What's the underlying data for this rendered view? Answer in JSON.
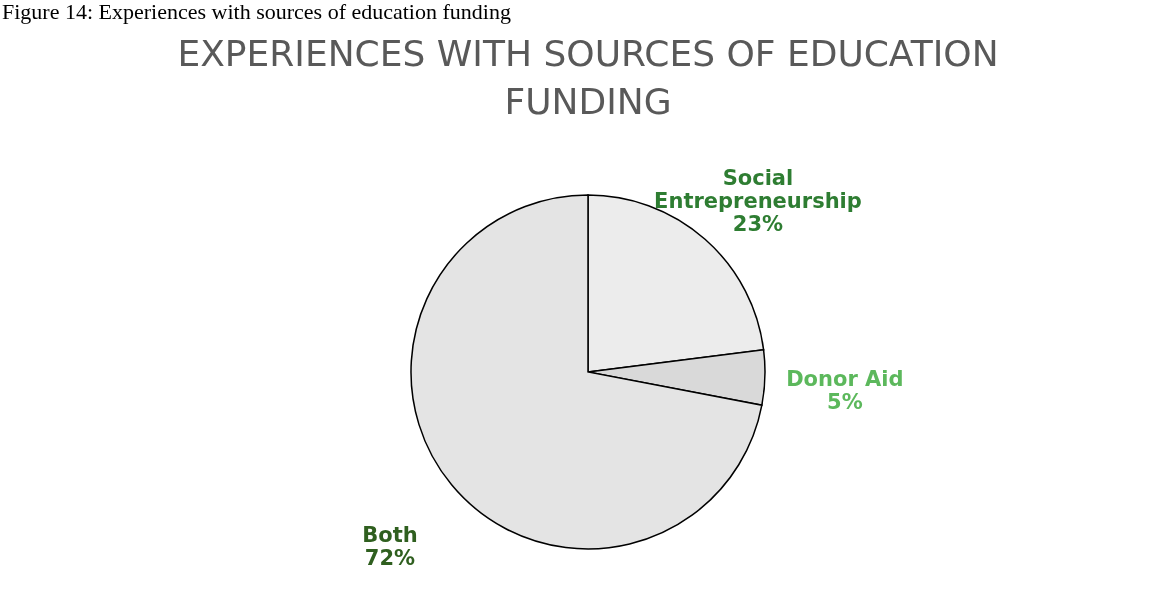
{
  "chart_data": {
    "type": "pie",
    "title": "EXPERIENCES WITH SOURCES OF EDUCATION FUNDING",
    "categories": [
      "Social Entrepreneurship",
      "Donor Aid",
      "Both"
    ],
    "values": [
      23,
      5,
      72
    ],
    "value_labels": [
      "23%",
      "5%",
      "72%"
    ],
    "colors": [
      "#ececec",
      "#d9d9d9",
      "#e4e4e4"
    ],
    "annotations": [
      "Figure 14: Experiences with sources of education funding"
    ]
  }
}
